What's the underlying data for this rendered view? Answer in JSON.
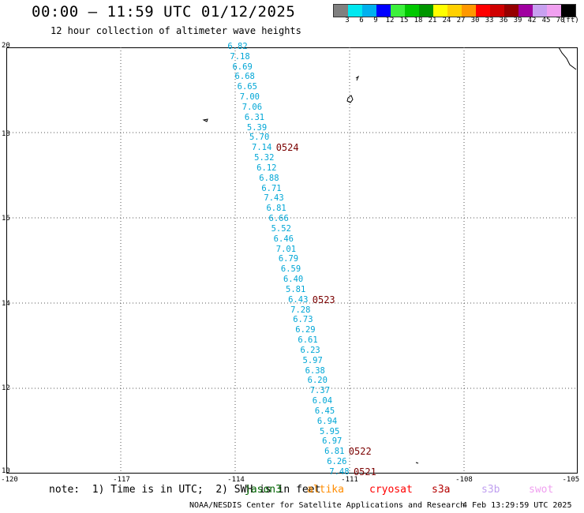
{
  "header": {
    "title": "00:00 – 11:59 UTC 01/12/2025",
    "subtitle": "12 hour collection of altimeter wave heights"
  },
  "legend": {
    "colors": [
      "#808080",
      "#00e8f0",
      "#00b0ee",
      "#0000ff",
      "#3cf03c",
      "#00c800",
      "#009600",
      "#ffff00",
      "#ffd000",
      "#ff9800",
      "#ff0000",
      "#d00000",
      "#960000",
      "#a000a0",
      "#c8a0f0",
      "#f0a0f0",
      "#000000"
    ],
    "labels": [
      "3",
      "6",
      "9",
      "12",
      "15",
      "18",
      "21",
      "24",
      "27",
      "30",
      "33",
      "36",
      "39",
      "42",
      "45",
      "70"
    ],
    "unit": "(ft)"
  },
  "map": {
    "lat_labels": [
      "20",
      "18",
      "16",
      "14",
      "12",
      "10"
    ],
    "lon_labels": [
      "-120",
      "-117",
      "-114",
      "-111",
      "-108",
      "-105"
    ],
    "wave_heights": [
      "6.82",
      "7.18",
      "6.69",
      "6.68",
      "6.65",
      "7.00",
      "7.06",
      "6.31",
      "5.39",
      "5.70",
      "7.14",
      "5.32",
      "6.12",
      "6.88",
      "6.71",
      "7.43",
      "6.81",
      "6.66",
      "5.52",
      "6.46",
      "7.01",
      "6.79",
      "6.59",
      "6.40",
      "5.81",
      "6.43",
      "7.28",
      "6.73",
      "6.29",
      "6.61",
      "6.23",
      "5.97",
      "6.38",
      "6.20",
      "7.37",
      "6.04",
      "6.45",
      "6.94",
      "5.95",
      "6.97",
      "6.81",
      "6.26",
      "7.48"
    ],
    "pass_labels": [
      {
        "text": "0524",
        "index": 10
      },
      {
        "text": "0523",
        "index": 25
      },
      {
        "text": "0522",
        "index": 40
      },
      {
        "text": "0521",
        "index": 42
      }
    ]
  },
  "footer": {
    "note": "note:  1) Time is in UTC;  2) SWH is in feet",
    "satellites": [
      {
        "name": "jason3",
        "color": "#006400"
      },
      {
        "name": "altika",
        "color": "#ff8c00"
      },
      {
        "name": "cryosat",
        "color": "#ff0000"
      },
      {
        "name": "s3a",
        "color": "#b40000"
      },
      {
        "name": "s3b",
        "color": "#c0a0f0"
      },
      {
        "name": "swot",
        "color": "#f0a0f0"
      }
    ],
    "credit": "NOAA/NESDIS Center for Satellite Applications and Research",
    "timestamp": "4 Feb 13:29:59 UTC 2025"
  }
}
